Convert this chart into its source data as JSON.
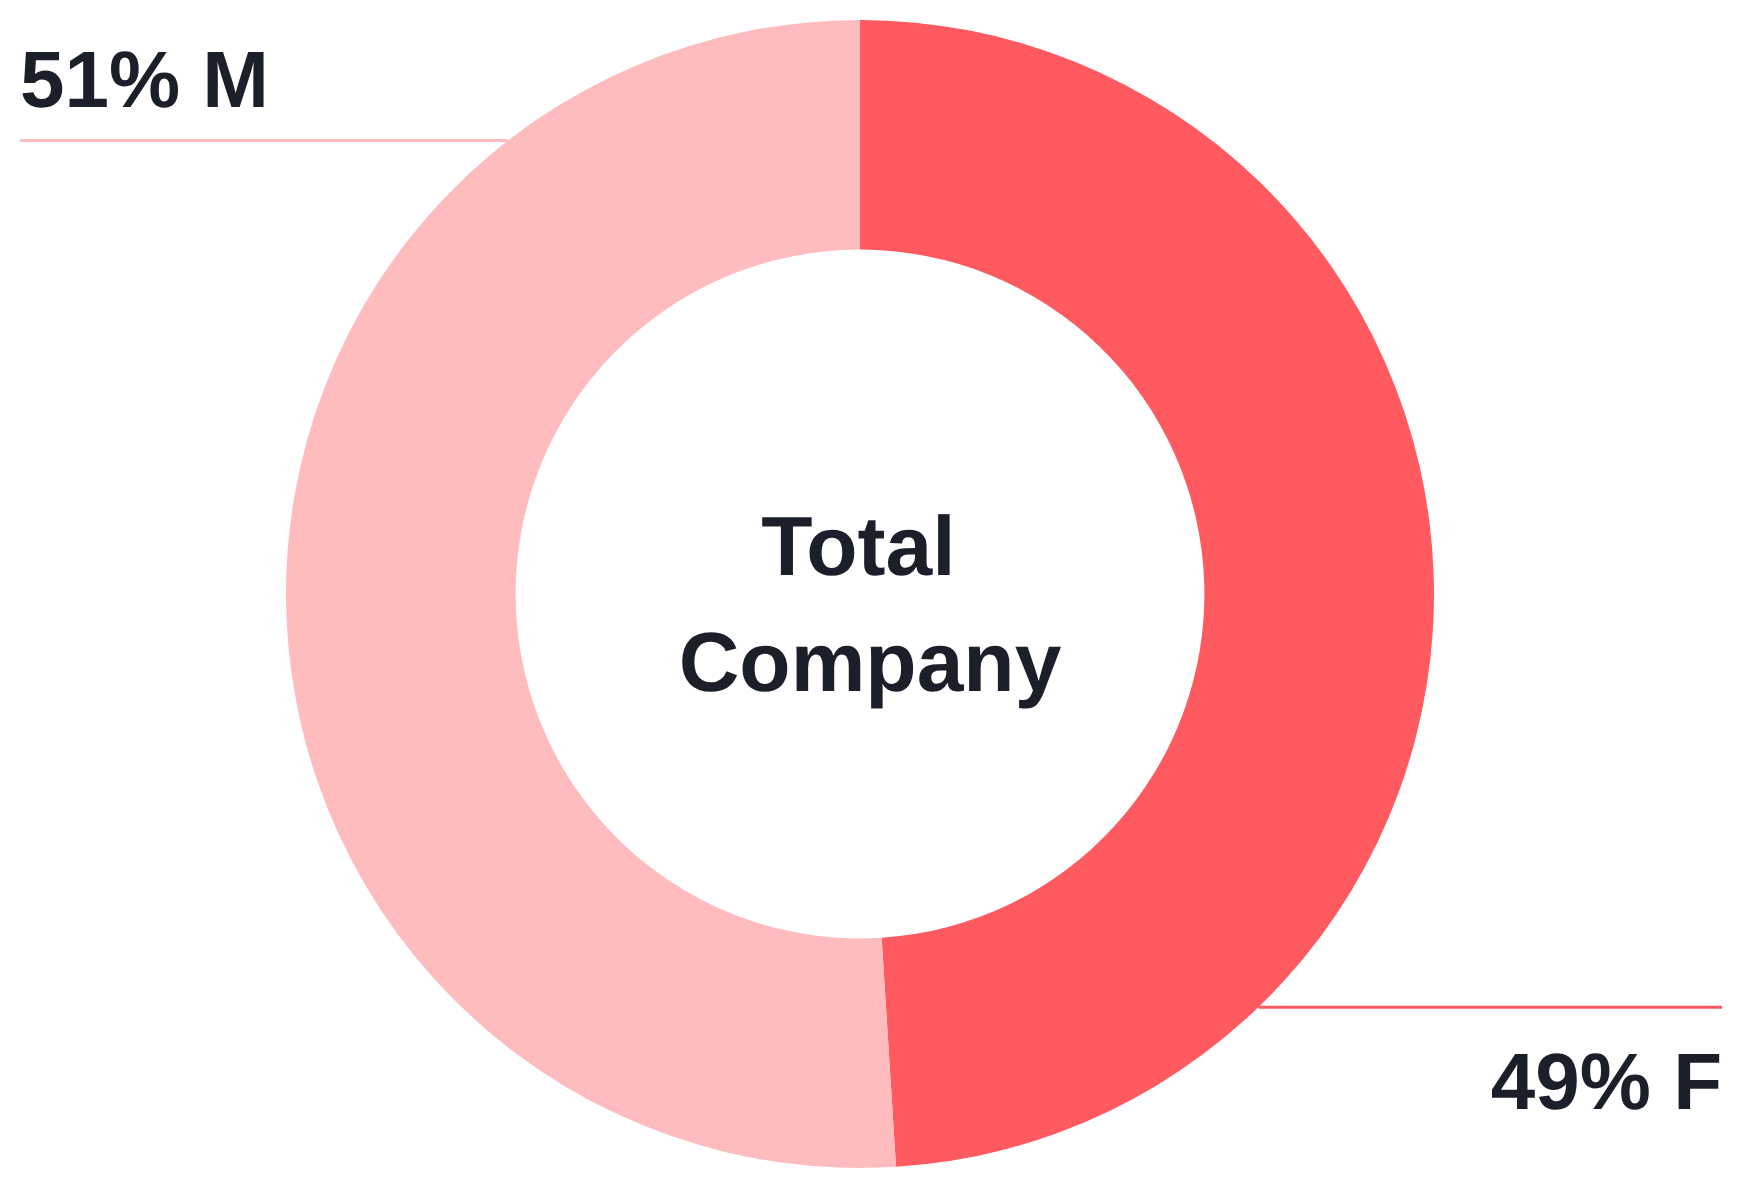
{
  "chart_data": {
    "type": "donut",
    "title": "Total Company",
    "categories": [
      "F",
      "M"
    ],
    "values": [
      49,
      51
    ],
    "colors": [
      "#ff5a5f",
      "#ffbcbe"
    ],
    "value_labels": [
      "49%",
      "51%"
    ],
    "legend": false
  }
}
